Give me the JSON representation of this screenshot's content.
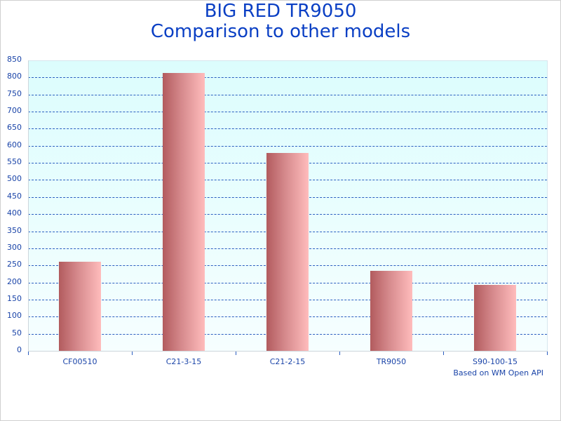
{
  "title": {
    "line1": "BIG RED TR9050",
    "line2": "Comparison to other models"
  },
  "footnote": "Based on WM Open API",
  "colors": {
    "title": "#0a3fc4",
    "axis_text": "#1a44a8",
    "gridline": "#2b5ec0",
    "bar_dark": "#b25b5e",
    "bar_light": "#ffbcbc",
    "plot_bg_top": "#dcfdfd",
    "plot_bg_bottom": "#f6feff"
  },
  "chart_data": {
    "type": "bar",
    "title": "BIG RED TR9050 Comparison to other models",
    "categories": [
      "CF00510",
      "C21-3-15",
      "C21-2-15",
      "TR9050",
      "S90-100-15"
    ],
    "values": [
      260,
      814,
      580,
      234,
      193
    ],
    "xlabel": "",
    "ylabel": "",
    "ylim": [
      0,
      850
    ],
    "yticks": [
      0,
      50,
      100,
      150,
      200,
      250,
      300,
      350,
      400,
      450,
      500,
      550,
      600,
      650,
      700,
      750,
      800,
      850
    ],
    "grid": true,
    "legend": null,
    "annotation": "Based on WM Open API"
  }
}
